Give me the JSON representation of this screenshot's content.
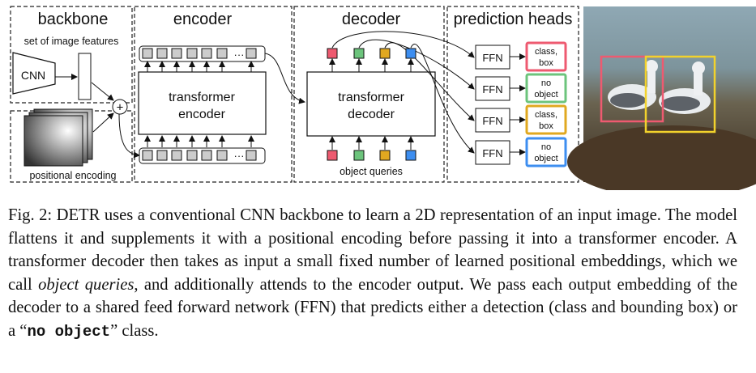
{
  "figure": {
    "sections": {
      "backbone": "backbone",
      "encoder": "encoder",
      "decoder": "decoder",
      "heads": "prediction heads"
    },
    "labels": {
      "image_features": "set of image features",
      "cnn": "CNN",
      "positional_encoding": "positional encoding",
      "plus": "+",
      "transformer_encoder_1": "transformer",
      "transformer_encoder_2": "encoder",
      "transformer_decoder_1": "transformer",
      "transformer_decoder_2": "decoder",
      "object_queries": "object queries",
      "dots": "···",
      "ffn": "FFN"
    },
    "outputs": [
      {
        "line1": "class,",
        "line2": "box",
        "color": "#ee5a70"
      },
      {
        "line1": "no",
        "line2": "object",
        "color": "#6cc47c"
      },
      {
        "line1": "class,",
        "line2": "box",
        "color": "#e0a820"
      },
      {
        "line1": "no",
        "line2": "object",
        "color": "#3d8ef0"
      }
    ],
    "query_colors": [
      "#ee5a70",
      "#6cc47c",
      "#e0a820",
      "#3d8ef0"
    ],
    "photo_box_colors": [
      "#ee5a70",
      "#f2d22c"
    ]
  },
  "caption": {
    "prefix": "Fig. 2: DETR uses a conventional CNN backbone to learn a 2D representation of an input image. The model flattens it and supplements it with a positional encoding before passing it into a transformer encoder. A transformer decoder then takes as input a small fixed number of learned positional embeddings, which we call ",
    "emph": "object queries",
    "middle": ", and additionally attends to the encoder output. We pass each output embedding of the decoder to a shared feed forward network (FFN) that predicts either a detection (class and bounding box) or a “",
    "code": "no object",
    "suffix": "” class."
  }
}
